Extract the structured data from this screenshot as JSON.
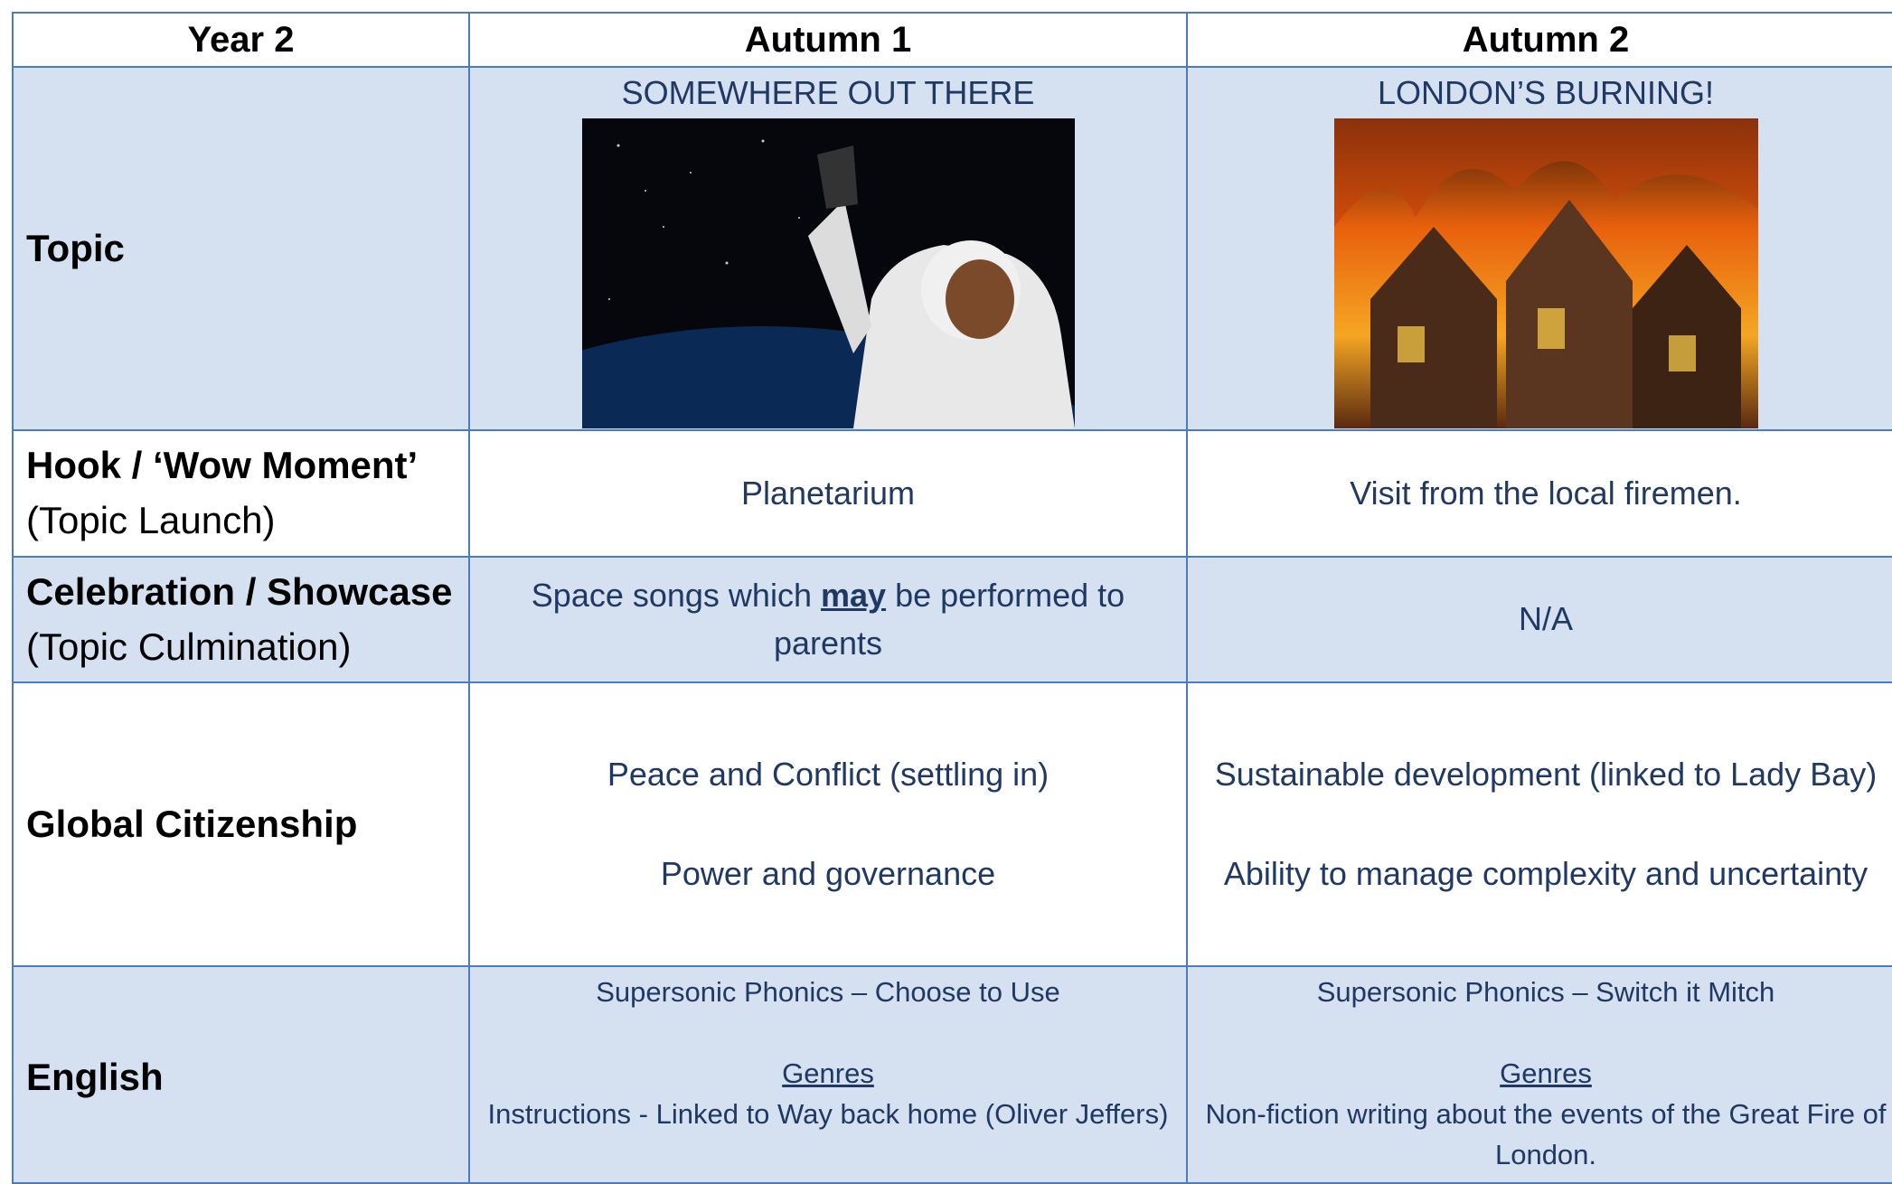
{
  "header": [
    "Year 2",
    "Autumn 1",
    "Autumn 2"
  ],
  "rows": [
    {
      "label": "Topic",
      "cells": [
        "SOMEWHERE OUT THERE",
        "LONDON’S BURNING!"
      ]
    },
    {
      "label": "Hook / ‘Wow Moment’",
      "sublabel": "(Topic Launch)",
      "cells": [
        "Planetarium",
        "Visit from the local firemen."
      ]
    },
    {
      "label": "Celebration / Showcase",
      "sublabel": "(Topic Culmination)",
      "cells": [
        {
          "before": "Space songs which",
          "emphasis": "may",
          "after": "be performed to parents"
        },
        "N/A"
      ]
    },
    {
      "label": "Global Citizenship",
      "cells": [
        [
          "Peace and Conflict (settling in)",
          "Power and governance"
        ],
        [
          "Sustainable development (linked to Lady Bay)",
          "Ability to manage complexity and uncertainty"
        ]
      ]
    },
    {
      "label": "English",
      "cells": [
        {
          "phonics": "Supersonic Phonics – Choose to Use",
          "genres_heading": "Genres",
          "genres": "Instructions - Linked to Way back home (Oliver Jeffers)"
        },
        {
          "phonics": "Supersonic Phonics – Switch it Mitch",
          "genres_heading": "Genres",
          "genres": "Non-fiction writing about the events of the Great Fire of London."
        }
      ]
    }
  ]
}
